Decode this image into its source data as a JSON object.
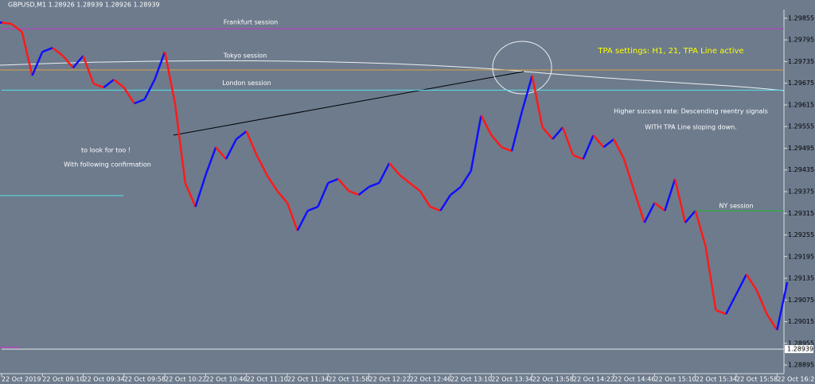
{
  "chart_data": {
    "type": "line",
    "title": "GBPUSD,M1  1.28926 1.28939 1.28926 1.28939",
    "categories": [
      "22 Oct 2019",
      null,
      null,
      null,
      "22 Oct 09:10",
      null,
      null,
      null,
      "22 Oct 09:34",
      null,
      null,
      null,
      "22 Oct 09:58",
      null,
      null,
      null,
      "22 Oct 10:22",
      null,
      null,
      null,
      "22 Oct 10:46",
      null,
      null,
      null,
      "22 Oct 11:10",
      null,
      null,
      null,
      "22 Oct 11:34",
      null,
      null,
      null,
      "22 Oct 11:58",
      null,
      null,
      null,
      "22 Oct 12:22",
      null,
      null,
      null,
      "22 Oct 12:46",
      null,
      null,
      null,
      "22 Oct 13:10",
      null,
      null,
      null,
      "22 Oct 13:34",
      null,
      null,
      null,
      "22 Oct 13:58",
      null,
      null,
      null,
      "22 Oct 14:22",
      null,
      null,
      null,
      "22 Oct 14:46",
      null,
      null,
      null,
      "22 Oct 15:10",
      null,
      null,
      null,
      "22 Oct 15:34",
      null,
      null,
      null,
      "22 Oct 15:58",
      null,
      null,
      null,
      "22 Oct 16:22",
      null
    ],
    "series": [
      {
        "up_color": "#1010ff",
        "down_color": "#ff1a1a",
        "values": [
          1.29843,
          1.29839,
          1.29817,
          1.29696,
          1.29762,
          1.29773,
          1.29751,
          1.29718,
          1.29751,
          1.29674,
          1.29663,
          1.29685,
          1.29663,
          1.29619,
          1.2963,
          1.29685,
          1.29762,
          1.29619,
          1.29399,
          1.29333,
          1.29421,
          1.29498,
          1.29465,
          1.2952,
          1.29542,
          1.29476,
          1.29421,
          1.29377,
          1.29344,
          1.29267,
          1.29322,
          1.29333,
          1.29399,
          1.2941,
          1.29377,
          1.29366,
          1.29388,
          1.29399,
          1.29454,
          1.29421,
          1.29399,
          1.29377,
          1.29333,
          1.29322,
          1.29366,
          1.29388,
          1.29432,
          1.29586,
          1.29531,
          1.29498,
          1.29487,
          1.29597,
          1.29696,
          1.29553,
          1.2952,
          1.29553,
          1.29476,
          1.29465,
          1.29531,
          1.29498,
          1.2952,
          1.29465,
          1.29377,
          1.29289,
          1.29344,
          1.29322,
          1.2941,
          1.29289,
          1.29322,
          1.29223,
          1.29047,
          1.29036,
          1.29091,
          1.29146,
          1.29102,
          1.29036,
          1.28992,
          1.29124
        ]
      }
    ],
    "ylim": [
      1.28871,
      1.29879
    ],
    "yticks": [
      1.29855,
      1.29795,
      1.29735,
      1.29675,
      1.29615,
      1.29555,
      1.29495,
      1.29435,
      1.29375,
      1.29315,
      1.29255,
      1.29195,
      1.29135,
      1.29075,
      1.29015,
      1.28955,
      1.28895
    ],
    "current_price": 1.28939,
    "levels": [
      {
        "name": "Frankfurt session",
        "value": 1.29826,
        "color": "#cc33cc"
      },
      {
        "name": "London session",
        "value": 1.29656,
        "color": "#55e0e8"
      },
      {
        "name": "NY session",
        "value": 1.29322,
        "color": "#22bb22"
      }
    ],
    "annotations": [
      "Tokyo session",
      "TPA settings: H1, 21, TPA Line active",
      "Higher success rate: Descending reentry signals",
      "WITH TPA Line sloping down.",
      "to look for too !",
      "With following confirmation"
    ]
  }
}
